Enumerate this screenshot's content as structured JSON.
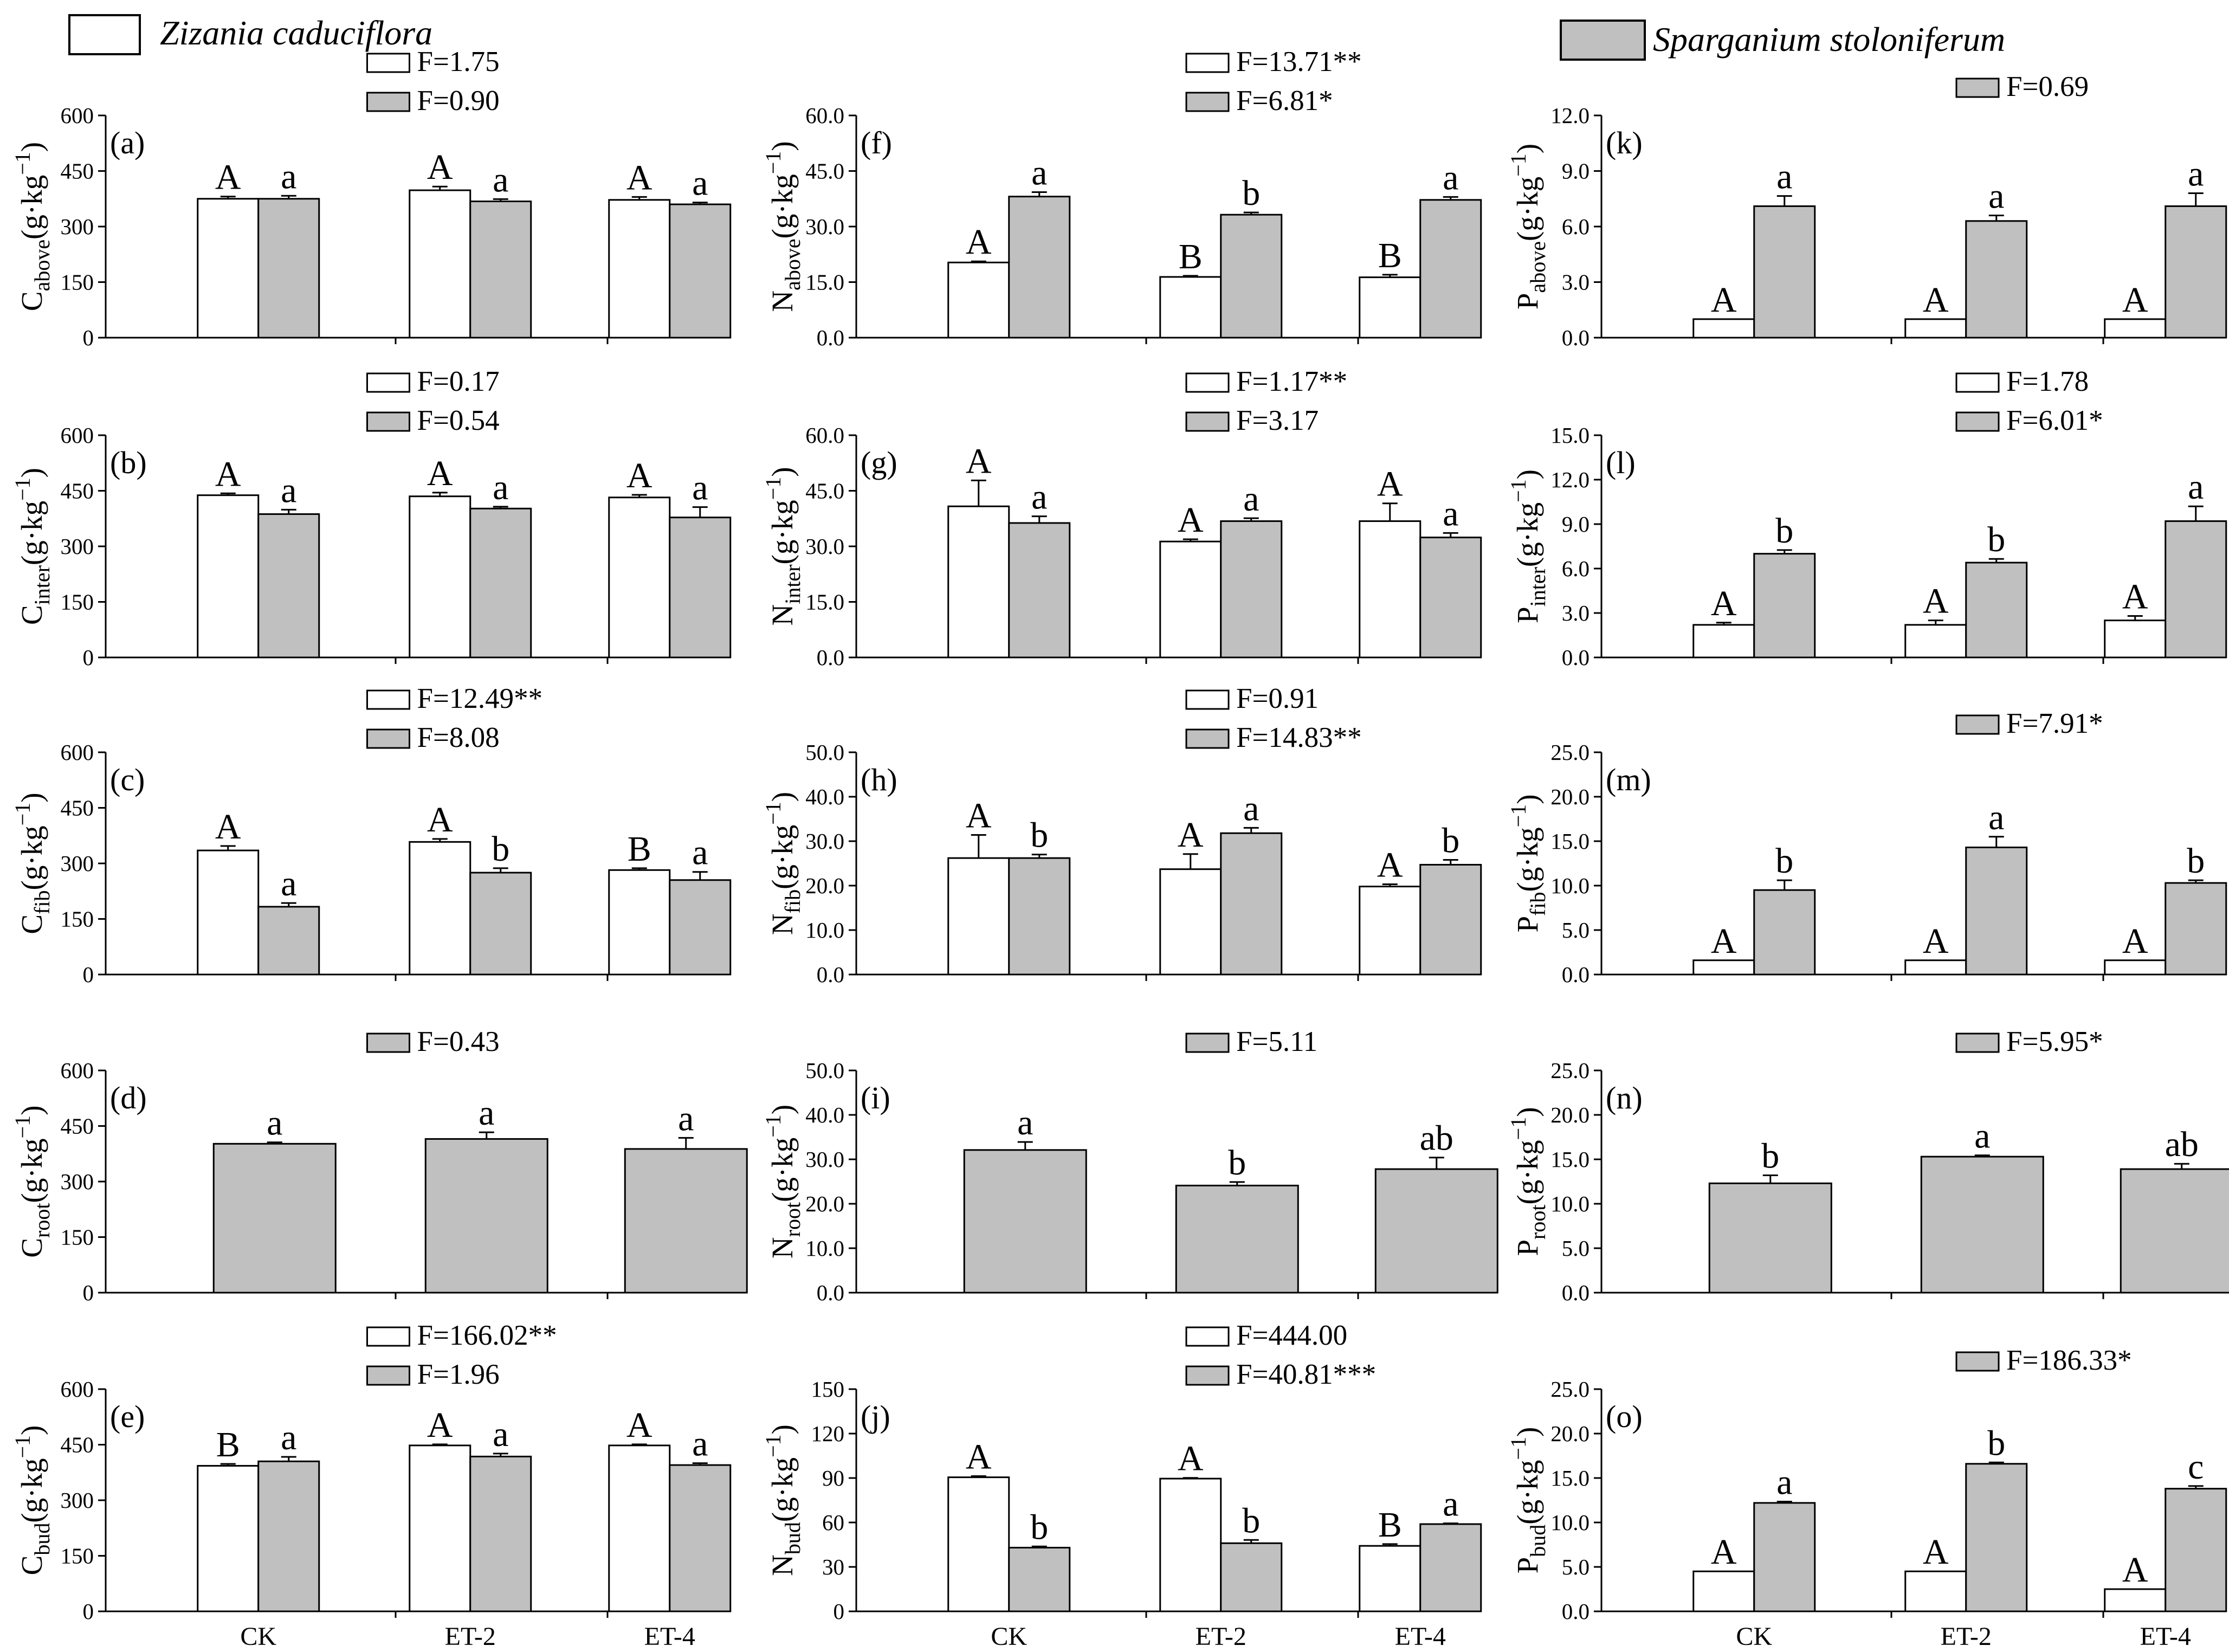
{
  "legend": {
    "white_label": "Zizania caduciflora",
    "gray_label": "Sparganium stoloniferum"
  },
  "colors": {
    "white_bar": "#ffffff",
    "gray_bar": "#c0c0c0",
    "axis": "#000000"
  },
  "chart_data": [
    {
      "id": "a",
      "type": "bar",
      "panel_label": "(a)",
      "element": "C",
      "sub": "above",
      "unit": "(g·kg",
      "unit_exp": "−1",
      "unit_close": ")",
      "ylim": [
        0,
        600
      ],
      "yticks": [
        "0",
        "150",
        "300",
        "450",
        "600"
      ],
      "categories": [
        "CK",
        "ET-2",
        "ET-4"
      ],
      "show_xlabels": false,
      "series": [
        {
          "name": "Zizania caduciflora",
          "values": [
            375,
            398,
            372
          ],
          "errors": [
            6,
            10,
            8
          ],
          "letters": [
            "A",
            "A",
            "A"
          ],
          "f_label": "F=1.75"
        },
        {
          "name": "Sparganium stoloniferum",
          "values": [
            375,
            368,
            360
          ],
          "errors": [
            8,
            6,
            5
          ],
          "letters": [
            "a",
            "a",
            "a"
          ],
          "f_label": "F=0.90"
        }
      ]
    },
    {
      "id": "b",
      "type": "bar",
      "panel_label": "(b)",
      "element": "C",
      "sub": "inter",
      "unit": "(g·kg",
      "unit_exp": "−1",
      "unit_close": ")",
      "ylim": [
        0,
        600
      ],
      "yticks": [
        "0",
        "150",
        "300",
        "450",
        "600"
      ],
      "categories": [
        "CK",
        "ET-2",
        "ET-4"
      ],
      "show_xlabels": false,
      "series": [
        {
          "name": "Zizania caduciflora",
          "values": [
            438,
            435,
            432
          ],
          "errors": [
            5,
            10,
            7
          ],
          "letters": [
            "A",
            "A",
            "A"
          ],
          "f_label": "F=0.17"
        },
        {
          "name": "Sparganium stoloniferum",
          "values": [
            387,
            402,
            378
          ],
          "errors": [
            12,
            5,
            28
          ],
          "letters": [
            "a",
            "a",
            "a"
          ],
          "f_label": "F=0.54"
        }
      ]
    },
    {
      "id": "c",
      "type": "bar",
      "panel_label": "(c)",
      "element": "C",
      "sub": "fib",
      "unit": "(g·kg",
      "unit_exp": "−1",
      "unit_close": ")",
      "ylim": [
        0,
        600
      ],
      "yticks": [
        "0",
        "150",
        "300",
        "450",
        "600"
      ],
      "categories": [
        "CK",
        "ET-2",
        "ET-4"
      ],
      "show_xlabels": false,
      "series": [
        {
          "name": "Zizania caduciflora",
          "values": [
            335,
            358,
            282
          ],
          "errors": [
            12,
            8,
            5
          ],
          "letters": [
            "A",
            "A",
            "B"
          ],
          "f_label": "F=12.49**"
        },
        {
          "name": "Sparganium stoloniferum",
          "values": [
            183,
            275,
            255
          ],
          "errors": [
            10,
            12,
            22
          ],
          "letters": [
            "a",
            "b",
            "a"
          ],
          "f_label": "F=8.08"
        }
      ]
    },
    {
      "id": "d",
      "type": "bar",
      "panel_label": "(d)",
      "element": "C",
      "sub": "root",
      "unit": "(g·kg",
      "unit_exp": "−1",
      "unit_close": ")",
      "ylim": [
        0,
        600
      ],
      "yticks": [
        "0",
        "150",
        "300",
        "450",
        "600"
      ],
      "categories": [
        "CK",
        "ET-2",
        "ET-4"
      ],
      "show_xlabels": false,
      "series": [
        {
          "name": "Sparganium stoloniferum",
          "values": [
            402,
            415,
            388
          ],
          "errors": [
            4,
            18,
            30
          ],
          "letters": [
            "a",
            "a",
            "a"
          ],
          "f_label": "F=0.43"
        }
      ]
    },
    {
      "id": "e",
      "type": "bar",
      "panel_label": "(e)",
      "element": "C",
      "sub": "bud",
      "unit": "(g·kg",
      "unit_exp": "−1",
      "unit_close": ")",
      "ylim": [
        0,
        600
      ],
      "yticks": [
        "0",
        "150",
        "300",
        "450",
        "600"
      ],
      "categories": [
        "CK",
        "ET-2",
        "ET-4"
      ],
      "show_xlabels": true,
      "series": [
        {
          "name": "Zizania caduciflora",
          "values": [
            393,
            448,
            448
          ],
          "errors": [
            5,
            3,
            3
          ],
          "letters": [
            "B",
            "A",
            "A"
          ],
          "f_label": "F=166.02**"
        },
        {
          "name": "Sparganium stoloniferum",
          "values": [
            405,
            418,
            395
          ],
          "errors": [
            12,
            8,
            5
          ],
          "letters": [
            "a",
            "a",
            "a"
          ],
          "f_label": "F=1.96"
        }
      ]
    },
    {
      "id": "f",
      "type": "bar",
      "panel_label": "(f)",
      "element": "N",
      "sub": "above",
      "unit": "(g·kg",
      "unit_exp": "−1",
      "unit_close": ")",
      "ylim": [
        0,
        60
      ],
      "yticks": [
        "0.0",
        "15.0",
        "30.0",
        "45.0",
        "60.0"
      ],
      "categories": [
        "CK",
        "ET-2",
        "ET-4"
      ],
      "show_xlabels": false,
      "series": [
        {
          "name": "Zizania caduciflora",
          "values": [
            20.3,
            16.4,
            16.3
          ],
          "errors": [
            0.3,
            0.3,
            0.7
          ],
          "letters": [
            "A",
            "B",
            "B"
          ],
          "f_label": "F=13.71**"
        },
        {
          "name": "Sparganium stoloniferum",
          "values": [
            38.1,
            33.2,
            37.2
          ],
          "errors": [
            1.2,
            0.6,
            0.8
          ],
          "letters": [
            "a",
            "b",
            "a"
          ],
          "f_label": "F=6.81*"
        }
      ]
    },
    {
      "id": "g",
      "type": "bar",
      "panel_label": "(g)",
      "element": "N",
      "sub": "inter",
      "unit": "(g·kg",
      "unit_exp": "−1",
      "unit_close": ")",
      "ylim": [
        0,
        60
      ],
      "yticks": [
        "0.0",
        "15.0",
        "30.0",
        "45.0",
        "60.0"
      ],
      "categories": [
        "CK",
        "ET-2",
        "ET-4"
      ],
      "show_xlabels": false,
      "series": [
        {
          "name": "Zizania caduciflora",
          "values": [
            40.8,
            31.3,
            36.8
          ],
          "errors": [
            7,
            0.6,
            4.8
          ],
          "letters": [
            "A",
            "A",
            "A"
          ],
          "f_label": "F=1.17**"
        },
        {
          "name": "Sparganium stoloniferum",
          "values": [
            36.3,
            36.8,
            32.4
          ],
          "errors": [
            1.8,
            0.8,
            1.2
          ],
          "letters": [
            "a",
            "a",
            "a"
          ],
          "f_label": "F=3.17"
        }
      ]
    },
    {
      "id": "h",
      "type": "bar",
      "panel_label": "(h)",
      "element": "N",
      "sub": "fib",
      "unit": "(g·kg",
      "unit_exp": "−1",
      "unit_close": ")",
      "ylim": [
        0,
        50
      ],
      "yticks": [
        "0.0",
        "10.0",
        "20.0",
        "30.0",
        "40.0",
        "50.0"
      ],
      "categories": [
        "CK",
        "ET-2",
        "ET-4"
      ],
      "show_xlabels": false,
      "series": [
        {
          "name": "Zizania caduciflora",
          "values": [
            26.2,
            23.7,
            19.8
          ],
          "errors": [
            5.2,
            3.4,
            0.5
          ],
          "letters": [
            "A",
            "A",
            "A"
          ],
          "f_label": "F=0.91"
        },
        {
          "name": "Sparganium stoloniferum",
          "values": [
            26.2,
            31.8,
            24.7
          ],
          "errors": [
            0.8,
            1.2,
            1.1
          ],
          "letters": [
            "b",
            "a",
            "b"
          ],
          "f_label": "F=14.83**"
        }
      ]
    },
    {
      "id": "i",
      "type": "bar",
      "panel_label": "(i)",
      "element": "N",
      "sub": "root",
      "unit": "(g·kg",
      "unit_exp": "−1",
      "unit_close": ")",
      "ylim": [
        0,
        50
      ],
      "yticks": [
        "0.0",
        "10.0",
        "20.0",
        "30.0",
        "40.0",
        "50.0"
      ],
      "categories": [
        "CK",
        "ET-2",
        "ET-4"
      ],
      "show_xlabels": false,
      "series": [
        {
          "name": "Sparganium stoloniferum",
          "values": [
            32.1,
            24.1,
            27.8
          ],
          "errors": [
            1.8,
            0.8,
            2.6
          ],
          "letters": [
            "a",
            "b",
            "ab"
          ],
          "f_label": "F=5.11"
        }
      ]
    },
    {
      "id": "j",
      "type": "bar",
      "panel_label": "(j)",
      "element": "N",
      "sub": "bud",
      "unit": "(g·kg",
      "unit_exp": "−1",
      "unit_close": ")",
      "ylim": [
        0,
        150
      ],
      "yticks": [
        "0",
        "30",
        "60",
        "90",
        "120",
        "150"
      ],
      "categories": [
        "CK",
        "ET-2",
        "ET-4"
      ],
      "show_xlabels": true,
      "series": [
        {
          "name": "Zizania caduciflora",
          "values": [
            90.5,
            89.6,
            44.2
          ],
          "errors": [
            0.8,
            0.5,
            1.2
          ],
          "letters": [
            "A",
            "A",
            "B"
          ],
          "f_label": "F=444.00"
        },
        {
          "name": "Sparganium stoloniferum",
          "values": [
            43.0,
            46.0,
            58.9
          ],
          "errors": [
            0.8,
            2.2,
            0.5
          ],
          "letters": [
            "b",
            "b",
            "a"
          ],
          "f_label": "F=40.81***"
        }
      ]
    },
    {
      "id": "k",
      "type": "bar",
      "panel_label": "(k)",
      "element": "P",
      "sub": "above",
      "unit": "(g·kg",
      "unit_exp": "−1",
      "unit_close": ")",
      "ylim": [
        0,
        12
      ],
      "yticks": [
        "0.0",
        "3.0",
        "6.0",
        "9.0",
        "12.0"
      ],
      "categories": [
        "CK",
        "ET-2",
        "ET-4"
      ],
      "show_xlabels": false,
      "series": [
        {
          "name": "Zizania caduciflora",
          "values": [
            1.0,
            1.0,
            1.0
          ],
          "errors": [
            0,
            0,
            0
          ],
          "letters": [
            "A",
            "A",
            "A"
          ],
          "f_label": ""
        },
        {
          "name": "Sparganium stoloniferum",
          "values": [
            7.1,
            6.3,
            7.1
          ],
          "errors": [
            0.55,
            0.3,
            0.7
          ],
          "letters": [
            "a",
            "a",
            "a"
          ],
          "f_label": "F=0.69"
        }
      ]
    },
    {
      "id": "l",
      "type": "bar",
      "panel_label": "(l)",
      "element": "P",
      "sub": "inter",
      "unit": "(g·kg",
      "unit_exp": "−1",
      "unit_close": ")",
      "ylim": [
        0,
        15
      ],
      "yticks": [
        "0.0",
        "3.0",
        "6.0",
        "9.0",
        "12.0",
        "15.0"
      ],
      "categories": [
        "CK",
        "ET-2",
        "ET-4"
      ],
      "show_xlabels": false,
      "series": [
        {
          "name": "Zizania caduciflora",
          "values": [
            2.2,
            2.2,
            2.5
          ],
          "errors": [
            0.15,
            0.3,
            0.3
          ],
          "letters": [
            "A",
            "A",
            "A"
          ],
          "f_label": "F=1.78"
        },
        {
          "name": "Sparganium stoloniferum",
          "values": [
            7.0,
            6.4,
            9.2
          ],
          "errors": [
            0.25,
            0.25,
            1.0
          ],
          "letters": [
            "b",
            "b",
            "a"
          ],
          "f_label": "F=6.01*"
        }
      ]
    },
    {
      "id": "m",
      "type": "bar",
      "panel_label": "(m)",
      "element": "P",
      "sub": "fib",
      "unit": "(g·kg",
      "unit_exp": "−1",
      "unit_close": ")",
      "ylim": [
        0,
        25
      ],
      "yticks": [
        "0.0",
        "5.0",
        "10.0",
        "15.0",
        "20.0",
        "25.0"
      ],
      "categories": [
        "CK",
        "ET-2",
        "ET-4"
      ],
      "show_xlabels": false,
      "series": [
        {
          "name": "Zizania caduciflora",
          "values": [
            1.6,
            1.6,
            1.6
          ],
          "errors": [
            0,
            0,
            0
          ],
          "letters": [
            "A",
            "A",
            "A"
          ],
          "f_label": ""
        },
        {
          "name": "Sparganium stoloniferum",
          "values": [
            9.5,
            14.3,
            10.3
          ],
          "errors": [
            1.1,
            1.2,
            0.3
          ],
          "letters": [
            "b",
            "a",
            "b"
          ],
          "f_label": "F=7.91*"
        }
      ]
    },
    {
      "id": "n",
      "type": "bar",
      "panel_label": "(n)",
      "element": "P",
      "sub": "root",
      "unit": "(g·kg",
      "unit_exp": "−1",
      "unit_close": ")",
      "ylim": [
        0,
        25
      ],
      "yticks": [
        "0.0",
        "5.0",
        "10.0",
        "15.0",
        "20.0",
        "25.0"
      ],
      "categories": [
        "CK",
        "ET-2",
        "ET-4"
      ],
      "show_xlabels": false,
      "series": [
        {
          "name": "Sparganium stoloniferum",
          "values": [
            12.3,
            15.3,
            13.9
          ],
          "errors": [
            0.9,
            0.15,
            0.6
          ],
          "letters": [
            "b",
            "a",
            "ab"
          ],
          "f_label": "F=5.95*"
        }
      ]
    },
    {
      "id": "o",
      "type": "bar",
      "panel_label": "(o)",
      "element": "P",
      "sub": "bud",
      "unit": "(g·kg",
      "unit_exp": "−1",
      "unit_close": ")",
      "ylim": [
        0,
        25
      ],
      "yticks": [
        "0.0",
        "5.0",
        "10.0",
        "15.0",
        "20.0",
        "25.0"
      ],
      "categories": [
        "CK",
        "ET-2",
        "ET-4"
      ],
      "show_xlabels": true,
      "series": [
        {
          "name": "Zizania caduciflora",
          "values": [
            4.5,
            4.5,
            2.5
          ],
          "errors": [
            0,
            0,
            0
          ],
          "letters": [
            "A",
            "A",
            "A"
          ],
          "f_label": ""
        },
        {
          "name": "Sparganium stoloniferum",
          "values": [
            12.2,
            16.6,
            13.8
          ],
          "errors": [
            0.15,
            0.15,
            0.3
          ],
          "letters": [
            "a",
            "b",
            "c"
          ],
          "f_label": "F=186.33*"
        }
      ]
    }
  ]
}
